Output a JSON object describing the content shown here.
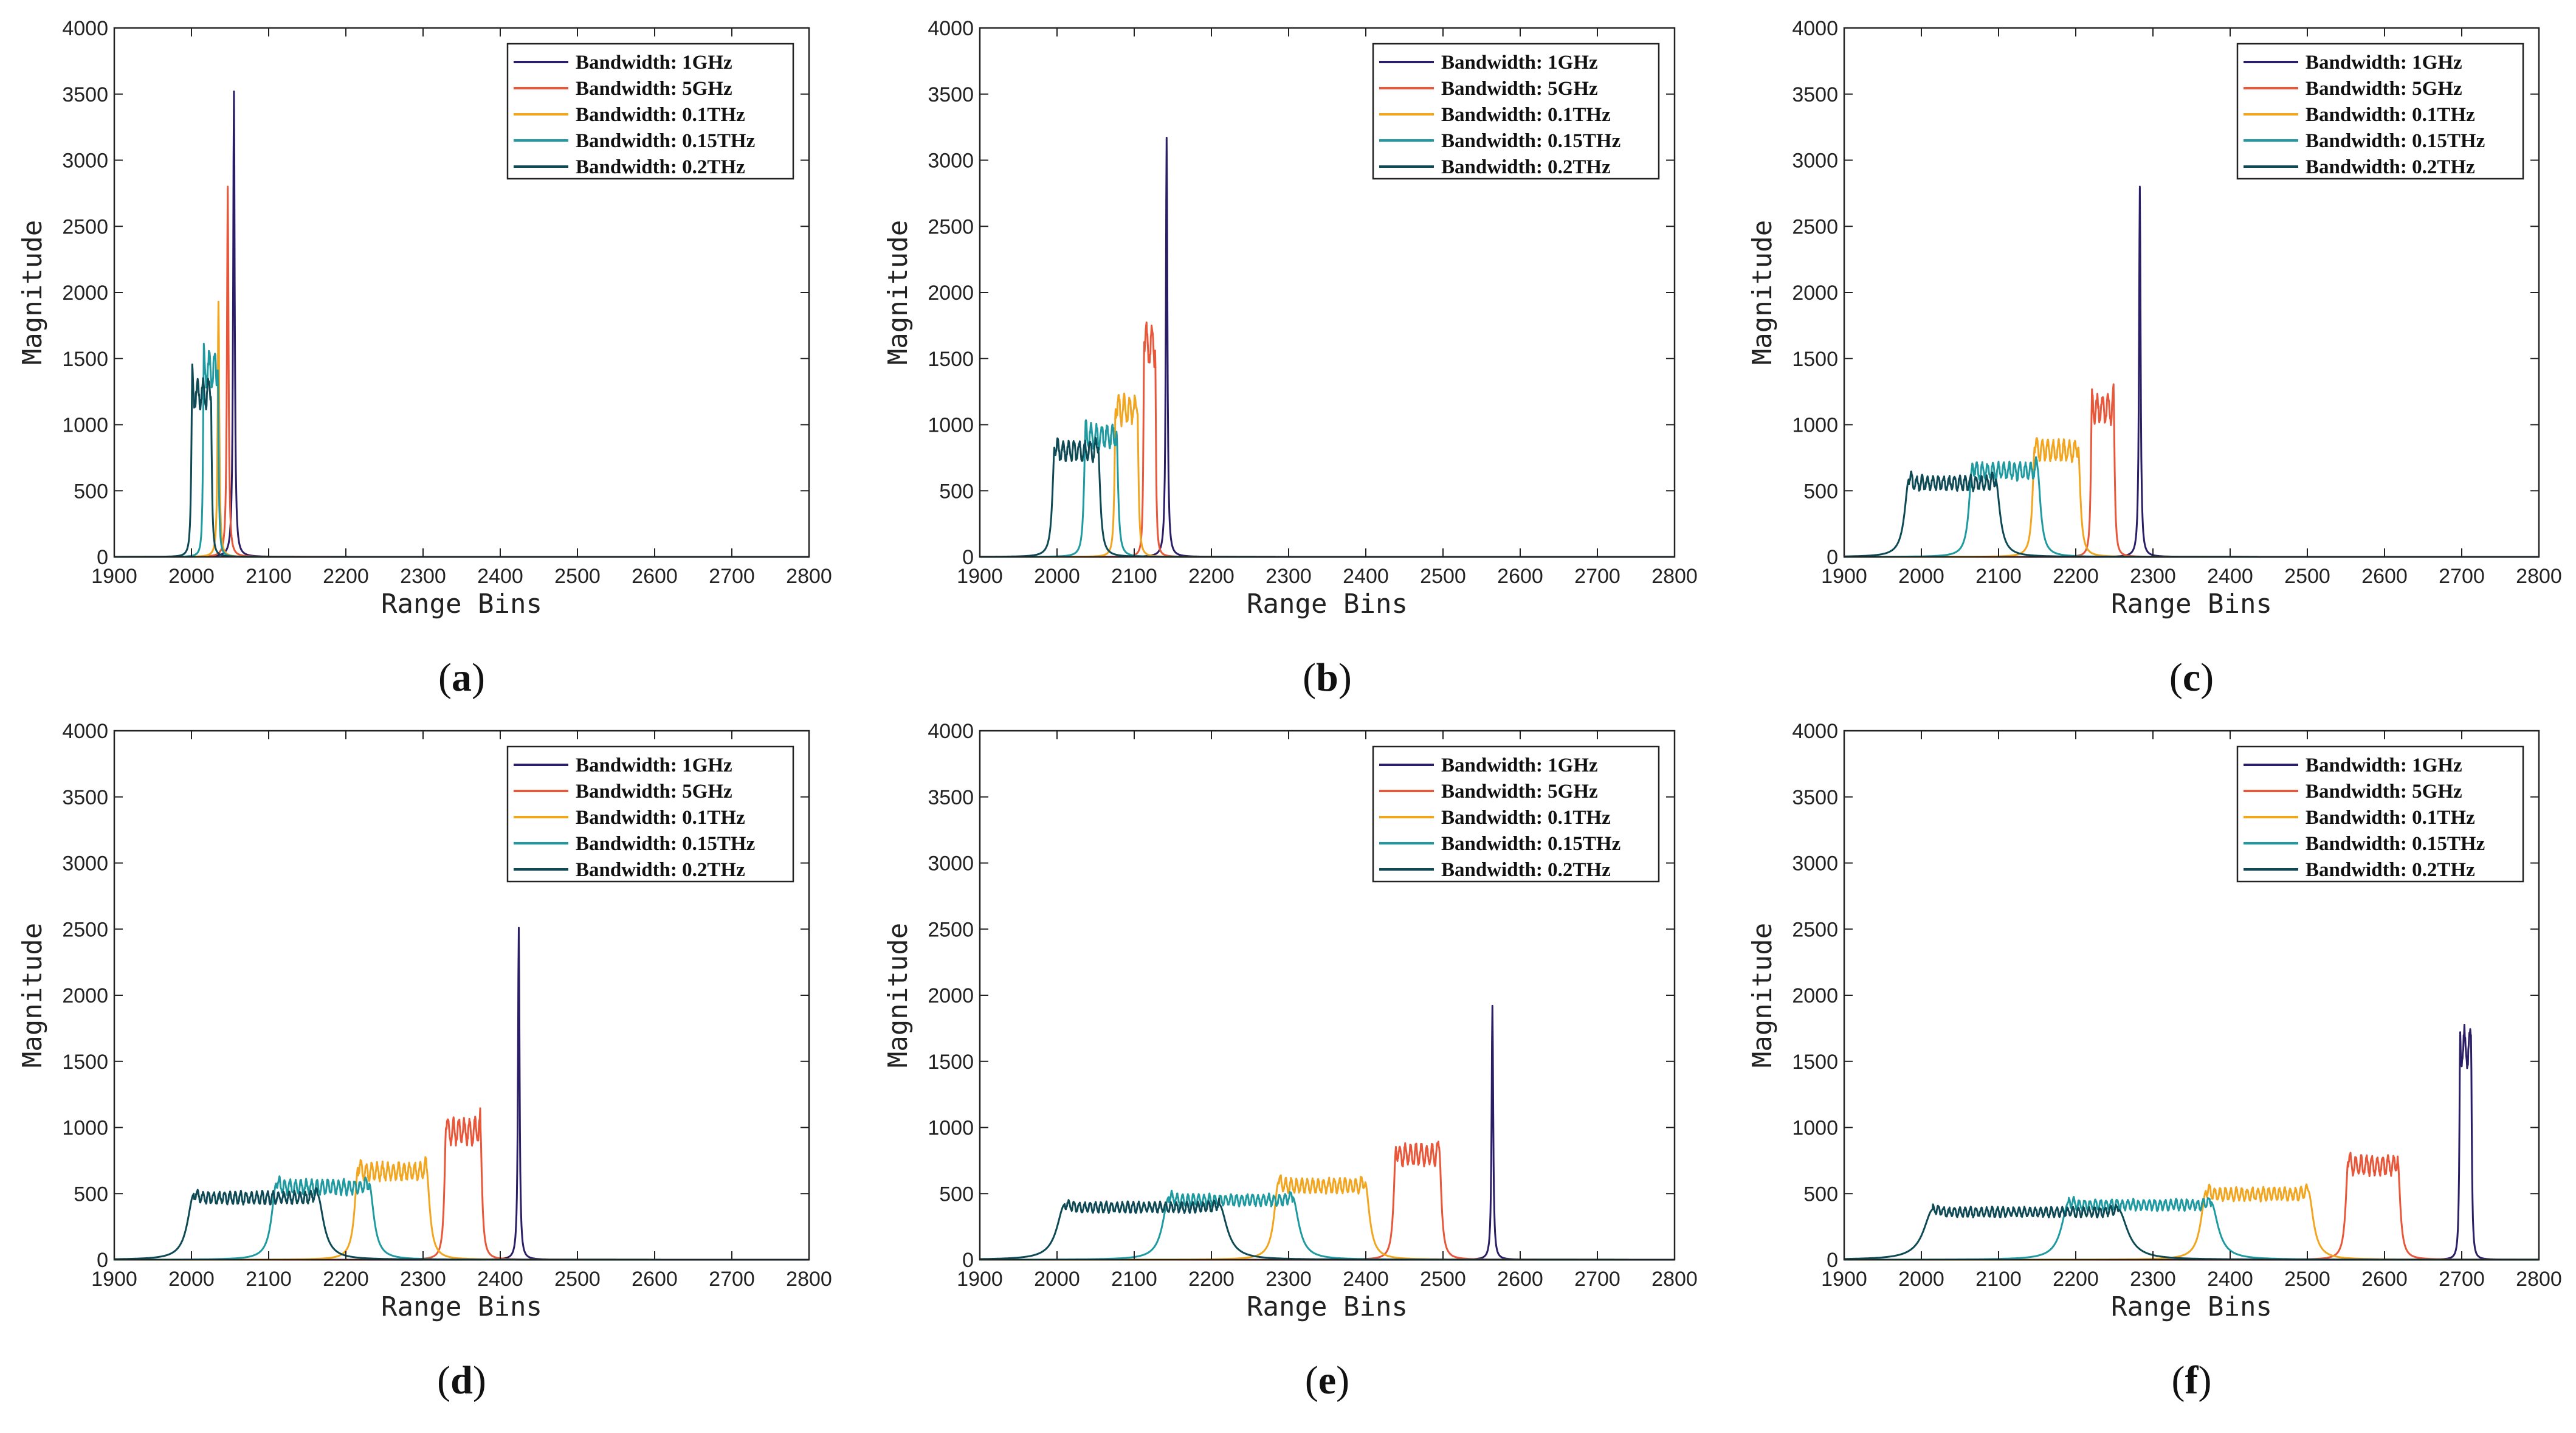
{
  "figure": {
    "panel_labels": [
      "a",
      "b",
      "c",
      "d",
      "e",
      "f"
    ]
  },
  "colors": {
    "1GHz": "#2b1e66",
    "5GHz": "#e8573a",
    "0.1THz": "#f2a51f",
    "0.15THz": "#1f9aa0",
    "0.2THz": "#0e4a55",
    "axis": "#222222"
  },
  "chart_data": [
    {
      "panel": "a",
      "type": "line",
      "xlabel": "Range Bins",
      "ylabel": "Magnitude",
      "xlim": [
        1900,
        2800
      ],
      "ylim": [
        0,
        4000
      ],
      "xticks": [
        "1900",
        "2000",
        "2100",
        "2200",
        "2300",
        "2400",
        "2500",
        "2600",
        "2700",
        "2800"
      ],
      "yticks": [
        "0",
        "500",
        "1000",
        "1500",
        "2000",
        "2500",
        "3000",
        "3500",
        "4000"
      ],
      "legend": [
        "Bandwidth: 1GHz",
        "Bandwidth: 5GHz",
        "Bandwidth: 0.1THz",
        "Bandwidth: 0.15THz",
        "Bandwidth: 0.2THz"
      ],
      "series": [
        {
          "name": "Bandwidth: 1GHz",
          "center": 2055,
          "width": 2,
          "peak": 3520
        },
        {
          "name": "Bandwidth: 5GHz",
          "center": 2047,
          "width": 3,
          "peak": 2800
        },
        {
          "name": "Bandwidth: 0.1THz",
          "center": 2035,
          "width": 6,
          "peak": 1930
        },
        {
          "name": "Bandwidth: 0.15THz",
          "center": 2025,
          "width": 9,
          "peak": 1570
        },
        {
          "name": "Bandwidth: 0.2THz",
          "center": 2013,
          "width": 12,
          "peak": 1370
        }
      ]
    },
    {
      "panel": "b",
      "type": "line",
      "xlabel": "Range Bins",
      "ylabel": "Magnitude",
      "xlim": [
        1900,
        2800
      ],
      "ylim": [
        0,
        4000
      ],
      "xticks": [
        "1900",
        "2000",
        "2100",
        "2200",
        "2300",
        "2400",
        "2500",
        "2600",
        "2700",
        "2800"
      ],
      "yticks": [
        "0",
        "500",
        "1000",
        "1500",
        "2000",
        "2500",
        "3000",
        "3500",
        "4000"
      ],
      "legend": [
        "Bandwidth: 1GHz",
        "Bandwidth: 5GHz",
        "Bandwidth: 0.1THz",
        "Bandwidth: 0.15THz",
        "Bandwidth: 0.2THz"
      ],
      "series": [
        {
          "name": "Bandwidth: 1GHz",
          "center": 2142,
          "width": 3,
          "peak": 3170
        },
        {
          "name": "Bandwidth: 5GHz",
          "center": 2120,
          "width": 7,
          "peak": 1780
        },
        {
          "name": "Bandwidth: 0.1THz",
          "center": 2090,
          "width": 14,
          "peak": 1240
        },
        {
          "name": "Bandwidth: 0.15THz",
          "center": 2057,
          "width": 20,
          "peak": 1010
        },
        {
          "name": "Bandwidth: 0.2THz",
          "center": 2025,
          "width": 28,
          "peak": 890
        }
      ]
    },
    {
      "panel": "c",
      "type": "line",
      "xlabel": "Range Bins",
      "ylabel": "Magnitude",
      "xlim": [
        1900,
        2800
      ],
      "ylim": [
        0,
        4000
      ],
      "xticks": [
        "1900",
        "2000",
        "2100",
        "2200",
        "2300",
        "2400",
        "2500",
        "2600",
        "2700",
        "2800"
      ],
      "yticks": [
        "0",
        "500",
        "1000",
        "1500",
        "2000",
        "2500",
        "3000",
        "3500",
        "4000"
      ],
      "legend": [
        "Bandwidth: 1GHz",
        "Bandwidth: 5GHz",
        "Bandwidth: 0.1THz",
        "Bandwidth: 0.15THz",
        "Bandwidth: 0.2THz"
      ],
      "series": [
        {
          "name": "Bandwidth: 1GHz",
          "center": 2283,
          "width": 4,
          "peak": 2800
        },
        {
          "name": "Bandwidth: 5GHz",
          "center": 2235,
          "width": 14,
          "peak": 1240
        },
        {
          "name": "Bandwidth: 0.1THz",
          "center": 2175,
          "width": 28,
          "peak": 890
        },
        {
          "name": "Bandwidth: 0.15THz",
          "center": 2108,
          "width": 42,
          "peak": 720
        },
        {
          "name": "Bandwidth: 0.2THz",
          "center": 2040,
          "width": 56,
          "peak": 620
        }
      ]
    },
    {
      "panel": "d",
      "type": "line",
      "xlabel": "Range Bins",
      "ylabel": "Magnitude",
      "xlim": [
        1900,
        2800
      ],
      "ylim": [
        0,
        4000
      ],
      "xticks": [
        "1900",
        "2000",
        "2100",
        "2200",
        "2300",
        "2400",
        "2500",
        "2600",
        "2700",
        "2800"
      ],
      "yticks": [
        "0",
        "500",
        "1000",
        "1500",
        "2000",
        "2500",
        "3000",
        "3500",
        "4000"
      ],
      "legend": [
        "Bandwidth: 1GHz",
        "Bandwidth: 5GHz",
        "Bandwidth: 0.1THz",
        "Bandwidth: 0.15THz",
        "Bandwidth: 0.2THz"
      ],
      "series": [
        {
          "name": "Bandwidth: 1GHz",
          "center": 2424,
          "width": 5,
          "peak": 2510
        },
        {
          "name": "Bandwidth: 5GHz",
          "center": 2352,
          "width": 22,
          "peak": 1080
        },
        {
          "name": "Bandwidth: 0.1THz",
          "center": 2260,
          "width": 44,
          "peak": 740
        },
        {
          "name": "Bandwidth: 0.15THz",
          "center": 2170,
          "width": 60,
          "peak": 610
        },
        {
          "name": "Bandwidth: 0.2THz",
          "center": 2083,
          "width": 80,
          "peak": 520
        }
      ]
    },
    {
      "panel": "e",
      "type": "line",
      "xlabel": "Range Bins",
      "ylabel": "Magnitude",
      "xlim": [
        1900,
        2800
      ],
      "ylim": [
        0,
        4000
      ],
      "xticks": [
        "1900",
        "2000",
        "2100",
        "2200",
        "2300",
        "2400",
        "2500",
        "2600",
        "2700",
        "2800"
      ],
      "yticks": [
        "0",
        "500",
        "1000",
        "1500",
        "2000",
        "2500",
        "3000",
        "3500",
        "4000"
      ],
      "legend": [
        "Bandwidth: 1GHz",
        "Bandwidth: 5GHz",
        "Bandwidth: 0.1THz",
        "Bandwidth: 0.15THz",
        "Bandwidth: 0.2THz"
      ],
      "series": [
        {
          "name": "Bandwidth: 1GHz",
          "center": 2564,
          "width": 6,
          "peak": 1920
        },
        {
          "name": "Bandwidth: 5GHz",
          "center": 2467,
          "width": 28,
          "peak": 880
        },
        {
          "name": "Bandwidth: 0.1THz",
          "center": 2343,
          "width": 56,
          "peak": 620
        },
        {
          "name": "Bandwidth: 0.15THz",
          "center": 2225,
          "width": 80,
          "peak": 500
        },
        {
          "name": "Bandwidth: 0.2THz",
          "center": 2110,
          "width": 100,
          "peak": 440
        }
      ]
    },
    {
      "panel": "f",
      "type": "line",
      "xlabel": "Range Bins",
      "ylabel": "Magnitude",
      "xlim": [
        1900,
        2800
      ],
      "ylim": [
        0,
        4000
      ],
      "xticks": [
        "1900",
        "2000",
        "2100",
        "2200",
        "2300",
        "2400",
        "2500",
        "2600",
        "2700",
        "2800"
      ],
      "yticks": [
        "0",
        "500",
        "1000",
        "1500",
        "2000",
        "2500",
        "3000",
        "3500",
        "4000"
      ],
      "legend": [
        "Bandwidth: 1GHz",
        "Bandwidth: 5GHz",
        "Bandwidth: 0.1THz",
        "Bandwidth: 0.15THz",
        "Bandwidth: 0.2THz"
      ],
      "series": [
        {
          "name": "Bandwidth: 1GHz",
          "center": 2705,
          "width": 7,
          "peak": 1770
        },
        {
          "name": "Bandwidth: 5GHz",
          "center": 2585,
          "width": 32,
          "peak": 790
        },
        {
          "name": "Bandwidth: 0.1THz",
          "center": 2435,
          "width": 66,
          "peak": 550
        },
        {
          "name": "Bandwidth: 0.15THz",
          "center": 2283,
          "width": 92,
          "peak": 460
        },
        {
          "name": "Bandwidth: 0.2THz",
          "center": 2135,
          "width": 120,
          "peak": 400
        }
      ]
    }
  ]
}
